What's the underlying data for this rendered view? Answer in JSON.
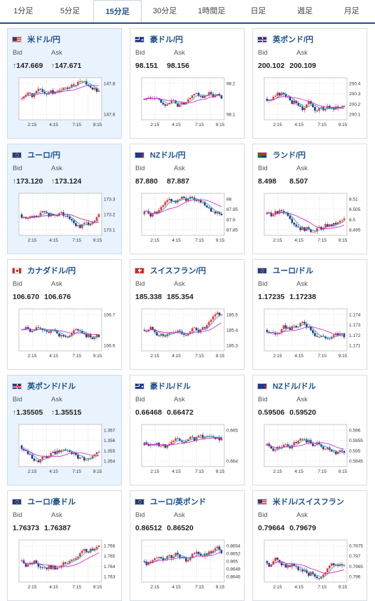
{
  "tabs": [
    "1分足",
    "5分足",
    "15分足",
    "30分足",
    "1時間足",
    "日足",
    "週足",
    "月足"
  ],
  "active_tab": 2,
  "labels": {
    "bid": "Bid",
    "ask": "Ask"
  },
  "cards": [
    {
      "pair": "米ドル/円",
      "flag": "us",
      "bid": "147.669",
      "ask": "147.671",
      "arrow": "↑",
      "hl": true,
      "ticks": [
        "147.8",
        "147.6"
      ],
      "xticks": [
        "2:15",
        "4:15",
        "7:15",
        "9:15"
      ],
      "seed": 1
    },
    {
      "pair": "豪ドル/円",
      "flag": "au",
      "bid": "98.151",
      "ask": "98.156",
      "arrow": "",
      "hl": false,
      "ticks": [
        "98.2",
        "98.1"
      ],
      "xticks": [
        "2:15",
        "4:15",
        "7:15",
        "9:15"
      ],
      "seed": 2
    },
    {
      "pair": "英ポンド/円",
      "flag": "gb",
      "bid": "200.102",
      "ask": "200.109",
      "arrow": "",
      "hl": false,
      "ticks": [
        "200.4",
        "200.3",
        "200.2",
        "200.1"
      ],
      "xticks": [
        "2:15",
        "4:15",
        "7:15",
        "9:15"
      ],
      "seed": 3
    },
    {
      "pair": "ユーロ/円",
      "flag": "eu",
      "bid": "173.120",
      "ask": "173.124",
      "arrow": "↑",
      "hl": true,
      "ticks": [
        "173.3",
        "173.2",
        "173.1"
      ],
      "xticks": [
        "2:15",
        "4:15",
        "7:15",
        "9:15"
      ],
      "seed": 4
    },
    {
      "pair": "NZドル/円",
      "flag": "nz",
      "bid": "87.880",
      "ask": "87.887",
      "arrow": "",
      "hl": false,
      "ticks": [
        "88",
        "87.95",
        "87.9",
        "87.85"
      ],
      "xticks": [
        "2:15",
        "4:15",
        "7:15",
        "9:15"
      ],
      "seed": 5
    },
    {
      "pair": "ランド/円",
      "flag": "za",
      "bid": "8.498",
      "ask": "8.507",
      "arrow": "",
      "hl": false,
      "ticks": [
        "8.51",
        "8.505",
        "8.5",
        "8.495"
      ],
      "xticks": [
        "2:15",
        "4:15",
        "7:15",
        "9:15"
      ],
      "seed": 6
    },
    {
      "pair": "カナダドル/円",
      "flag": "ca",
      "bid": "106.670",
      "ask": "106.676",
      "arrow": "",
      "hl": false,
      "ticks": [
        "106.7",
        "106.6"
      ],
      "xticks": [
        "2:15",
        "4:15",
        "7:15",
        "9:15"
      ],
      "seed": 7
    },
    {
      "pair": "スイスフラン/円",
      "flag": "ch",
      "bid": "185.338",
      "ask": "185.354",
      "arrow": "",
      "hl": false,
      "ticks": [
        "185.5",
        "185.4",
        "185.3"
      ],
      "xticks": [
        "2:15",
        "4:15",
        "7:15",
        "9:15"
      ],
      "seed": 8
    },
    {
      "pair": "ユーロ/ドル",
      "flag": "eu",
      "bid": "1.17235",
      "ask": "1.17238",
      "arrow": "",
      "hl": false,
      "ticks": [
        "1.174",
        "1.173",
        "1.172",
        "1.171"
      ],
      "xticks": [
        "2:15",
        "4:15",
        "7:15",
        "9:15"
      ],
      "seed": 9
    },
    {
      "pair": "英ポンド/ドル",
      "flag": "gb",
      "bid": "1.35505",
      "ask": "1.35515",
      "arrow": "↑",
      "hl": true,
      "ticks": [
        "1.357",
        "1.356",
        "1.355",
        "1.354"
      ],
      "xticks": [
        "2:15",
        "4:15",
        "7:15",
        "9:15"
      ],
      "seed": 10
    },
    {
      "pair": "豪ドル/ドル",
      "flag": "au",
      "bid": "0.66468",
      "ask": "0.66472",
      "arrow": "",
      "hl": false,
      "ticks": [
        "0.665",
        "0.664"
      ],
      "xticks": [
        "2:15",
        "4:15",
        "7:15",
        "9:15"
      ],
      "seed": 11
    },
    {
      "pair": "NZドル/ドル",
      "flag": "nz",
      "bid": "0.59506",
      "ask": "0.59520",
      "arrow": "",
      "hl": false,
      "ticks": [
        "0.596",
        "0.5955",
        "0.595",
        "0.5945"
      ],
      "xticks": [
        "2:15",
        "4:15",
        "7:15",
        "9:15"
      ],
      "seed": 12
    },
    {
      "pair": "ユーロ/豪ドル",
      "flag": "eu",
      "bid": "1.76373",
      "ask": "1.76387",
      "arrow": "",
      "hl": false,
      "ticks": [
        "1.766",
        "1.765",
        "1.764",
        "1.763"
      ],
      "xticks": [
        "2:15",
        "4:15",
        "7:15",
        "9:15"
      ],
      "seed": 13
    },
    {
      "pair": "ユーロ/英ポンド",
      "flag": "eu",
      "bid": "0.86512",
      "ask": "0.86520",
      "arrow": "",
      "hl": false,
      "ticks": [
        "0.8654",
        "0.8652",
        "0.865",
        "0.8648",
        "0.8646"
      ],
      "xticks": [
        "2:15",
        "4:15",
        "7:15",
        "9:15"
      ],
      "seed": 14
    },
    {
      "pair": "米ドル/スイスフラン",
      "flag": "us",
      "bid": "0.79664",
      "ask": "0.79679",
      "arrow": "",
      "hl": false,
      "ticks": [
        "0.7975",
        "0.797",
        "0.7965",
        "0.796"
      ],
      "xticks": [
        "2:15",
        "4:15",
        "7:15",
        "9:15"
      ],
      "seed": 15
    }
  ],
  "colors": {
    "up": "#e53935",
    "down": "#1f3b8f",
    "ma_short": "#2aa9b8",
    "ma_long": "#cc33cc",
    "link": "#1a4e8c"
  }
}
